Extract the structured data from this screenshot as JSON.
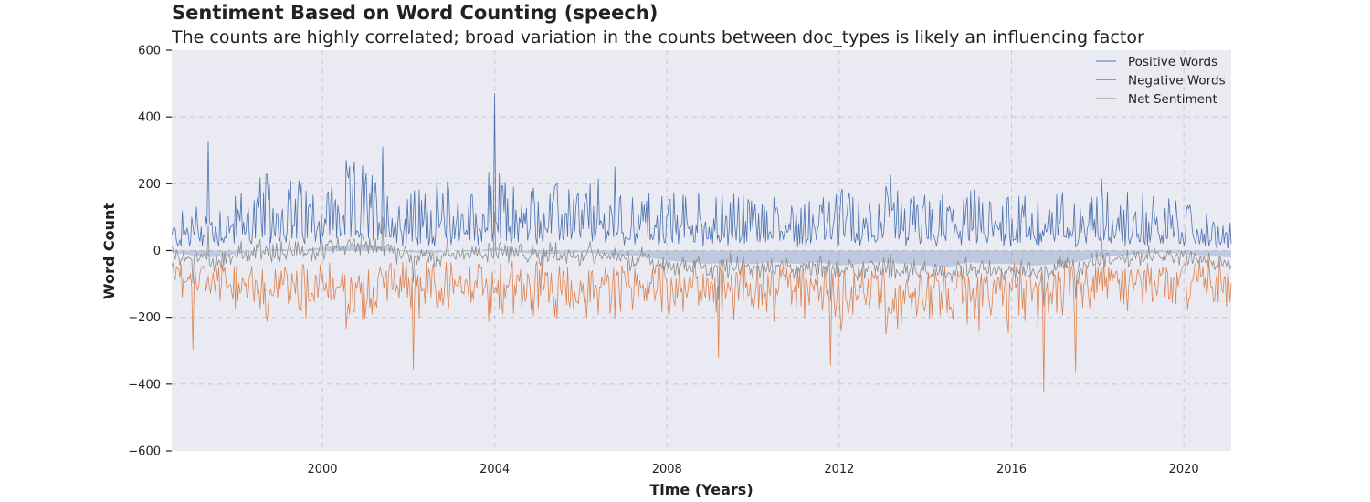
{
  "chart_data": {
    "type": "line",
    "title": "Sentiment Based on Word Counting (speech)",
    "subtitle": "The counts are highly correlated; broad variation in the counts between doc_types is likely an influencing factor",
    "xlabel": "Time (Years)",
    "ylabel": "Word Count",
    "xlim": [
      1996.5,
      2021.1
    ],
    "ylim": [
      -600,
      600
    ],
    "x_ticks": [
      2000,
      2004,
      2008,
      2012,
      2016,
      2020
    ],
    "x_tick_labels": [
      "2000",
      "2004",
      "2008",
      "2012",
      "2016",
      "2020"
    ],
    "y_ticks": [
      -600,
      -400,
      -200,
      0,
      200,
      400,
      600
    ],
    "y_tick_labels": [
      "−600",
      "−400",
      "−200",
      "0",
      "200",
      "400",
      "600"
    ],
    "grid": true,
    "legend_position": "top-right",
    "series": [
      {
        "name": "Positive Words",
        "color": "#4c72b0",
        "x": [
          1996.5,
          1997,
          1997.5,
          1998,
          1998.5,
          1999,
          1999.5,
          2000,
          2000.5,
          2001,
          2001.5,
          2002,
          2002.5,
          2003,
          2003.5,
          2004,
          2004.5,
          2005,
          2005.5,
          2006,
          2006.5,
          2007,
          2007.5,
          2008,
          2008.5,
          2009,
          2009.5,
          2010,
          2010.5,
          2011,
          2011.5,
          2012,
          2012.5,
          2013,
          2013.5,
          2014,
          2014.5,
          2015,
          2015.5,
          2016,
          2016.5,
          2017,
          2017.5,
          2018,
          2018.5,
          2019,
          2019.5,
          2020,
          2020.5,
          2021
        ],
        "values": [
          55,
          80,
          90,
          100,
          120,
          130,
          120,
          125,
          140,
          150,
          115,
          100,
          110,
          120,
          105,
          135,
          110,
          115,
          110,
          120,
          110,
          105,
          100,
          95,
          100,
          95,
          100,
          95,
          100,
          100,
          95,
          100,
          95,
          110,
          100,
          95,
          90,
          100,
          95,
          100,
          90,
          95,
          100,
          105,
          100,
          95,
          90,
          85,
          60,
          50
        ],
        "peaks": [
          {
            "x": 1997.35,
            "y": 325
          },
          {
            "x": 2001.4,
            "y": 310
          },
          {
            "x": 2004.0,
            "y": 470
          },
          {
            "x": 2006.8,
            "y": 250
          },
          {
            "x": 2013.2,
            "y": 225
          },
          {
            "x": 2018.1,
            "y": 215
          }
        ]
      },
      {
        "name": "Negative Words",
        "color": "#dd8452",
        "x": [
          1996.5,
          1997,
          1997.5,
          1998,
          1998.5,
          1999,
          1999.5,
          2000,
          2000.5,
          2001,
          2001.5,
          2002,
          2002.5,
          2003,
          2003.5,
          2004,
          2004.5,
          2005,
          2005.5,
          2006,
          2006.5,
          2007,
          2007.5,
          2008,
          2008.5,
          2009,
          2009.5,
          2010,
          2010.5,
          2011,
          2011.5,
          2012,
          2012.5,
          2013,
          2013.5,
          2014,
          2014.5,
          2015,
          2015.5,
          2016,
          2016.5,
          2017,
          2017.5,
          2018,
          2018.5,
          2019,
          2019.5,
          2020,
          2020.5,
          2021
        ],
        "values": [
          -60,
          -110,
          -120,
          -125,
          -130,
          -135,
          -130,
          -125,
          -130,
          -135,
          -125,
          -120,
          -125,
          -130,
          -125,
          -130,
          -125,
          -130,
          -125,
          -130,
          -125,
          -120,
          -125,
          -130,
          -135,
          -140,
          -135,
          -140,
          -135,
          -140,
          -135,
          -145,
          -140,
          -145,
          -140,
          -145,
          -140,
          -135,
          -140,
          -145,
          -140,
          -135,
          -130,
          -125,
          -120,
          -115,
          -110,
          -105,
          -100,
          -120
        ],
        "troughs": [
          {
            "x": 1997.0,
            "y": -295
          },
          {
            "x": 2002.1,
            "y": -355
          },
          {
            "x": 2009.2,
            "y": -320
          },
          {
            "x": 2011.8,
            "y": -345
          },
          {
            "x": 2016.75,
            "y": -425
          },
          {
            "x": 2017.5,
            "y": -365
          }
        ]
      },
      {
        "name": "Net Sentiment",
        "color": "#8c8c8c",
        "x": [
          1996.5,
          1997,
          1997.5,
          1998,
          1998.5,
          1999,
          1999.5,
          2000,
          2000.5,
          2001,
          2001.5,
          2002,
          2002.5,
          2003,
          2003.5,
          2004,
          2004.5,
          2005,
          2005.5,
          2006,
          2006.5,
          2007,
          2007.5,
          2008,
          2008.5,
          2009,
          2009.5,
          2010,
          2010.5,
          2011,
          2011.5,
          2012,
          2012.5,
          2013,
          2013.5,
          2014,
          2014.5,
          2015,
          2015.5,
          2016,
          2016.5,
          2017,
          2017.5,
          2018,
          2018.5,
          2019,
          2019.5,
          2020,
          2020.5,
          2021
        ],
        "values": [
          -5,
          -15,
          -20,
          -10,
          0,
          5,
          0,
          10,
          15,
          20,
          10,
          -5,
          -10,
          0,
          -5,
          10,
          -5,
          -10,
          -10,
          -5,
          -10,
          -15,
          -20,
          -30,
          -35,
          -40,
          -35,
          -40,
          -35,
          -40,
          -35,
          -45,
          -40,
          -35,
          -40,
          -45,
          -50,
          -35,
          -40,
          -40,
          -45,
          -40,
          -35,
          -20,
          -15,
          -10,
          -5,
          -10,
          -15,
          -20
        ],
        "fill_color": "#4c72b0"
      }
    ]
  }
}
